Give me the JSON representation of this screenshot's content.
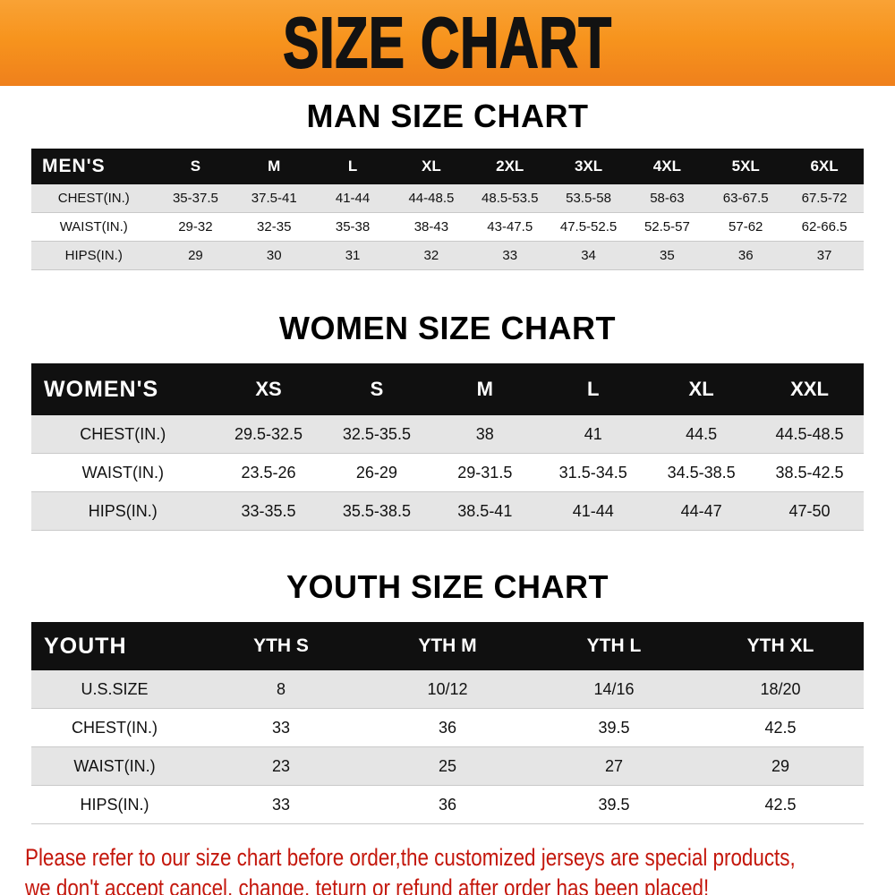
{
  "banner": {
    "title": "SIZE CHART"
  },
  "colors": {
    "banner_orange": "#f7941d",
    "table_header_black": "#101010",
    "row_gray": "#e5e5e5",
    "disclaimer_red": "#c4170c"
  },
  "chart_data": [
    {
      "type": "table",
      "title": "MAN SIZE CHART",
      "columns": [
        "MEN'S",
        "S",
        "M",
        "L",
        "XL",
        "2XL",
        "3XL",
        "4XL",
        "5XL",
        "6XL"
      ],
      "rows": [
        [
          "CHEST(IN.)",
          "35-37.5",
          "37.5-41",
          "41-44",
          "44-48.5",
          "48.5-53.5",
          "53.5-58",
          "58-63",
          "63-67.5",
          "67.5-72"
        ],
        [
          "WAIST(IN.)",
          "29-32",
          "32-35",
          "35-38",
          "38-43",
          "43-47.5",
          "47.5-52.5",
          "52.5-57",
          "57-62",
          "62-66.5"
        ],
        [
          "HIPS(IN.)",
          "29",
          "30",
          "31",
          "32",
          "33",
          "34",
          "35",
          "36",
          "37"
        ]
      ]
    },
    {
      "type": "table",
      "title": "WOMEN SIZE CHART",
      "columns": [
        "WOMEN'S",
        "XS",
        "S",
        "M",
        "L",
        "XL",
        "XXL"
      ],
      "rows": [
        [
          "CHEST(IN.)",
          "29.5-32.5",
          "32.5-35.5",
          "38",
          "41",
          "44.5",
          "44.5-48.5"
        ],
        [
          "WAIST(IN.)",
          "23.5-26",
          "26-29",
          "29-31.5",
          "31.5-34.5",
          "34.5-38.5",
          "38.5-42.5"
        ],
        [
          "HIPS(IN.)",
          "33-35.5",
          "35.5-38.5",
          "38.5-41",
          "41-44",
          "44-47",
          "47-50"
        ]
      ]
    },
    {
      "type": "table",
      "title": "YOUTH SIZE CHART",
      "columns": [
        "YOUTH",
        "YTH S",
        "YTH M",
        "YTH L",
        "YTH XL"
      ],
      "rows": [
        [
          "U.S.SIZE",
          "8",
          "10/12",
          "14/16",
          "18/20"
        ],
        [
          "CHEST(IN.)",
          "33",
          "36",
          "39.5",
          "42.5"
        ],
        [
          "WAIST(IN.)",
          "23",
          "25",
          "27",
          "29"
        ],
        [
          "HIPS(IN.)",
          "33",
          "36",
          "39.5",
          "42.5"
        ]
      ]
    }
  ],
  "disclaimer": {
    "line1": "Please refer to our size chart before order,the customized jerseys are special products,",
    "line2": "we don't accept cancel, change, teturn or refund after order has been placed!"
  }
}
